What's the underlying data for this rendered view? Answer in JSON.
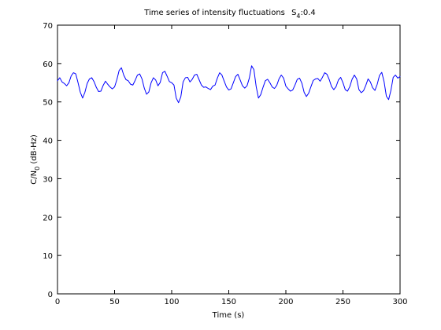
{
  "chart_data": {
    "type": "line",
    "title": "Time series of intensity fluctuations",
    "title_subscript_label": "S",
    "title_subscript": "4",
    "title_suffix": ":0.4",
    "xlabel": "Time (s)",
    "ylabel_prefix": "C/N",
    "ylabel_subscript": "0",
    "ylabel_suffix": " (dB-Hz)",
    "xlim": [
      0,
      300
    ],
    "ylim": [
      0,
      70
    ],
    "xticks": [
      0,
      50,
      100,
      150,
      200,
      250,
      300
    ],
    "yticks": [
      0,
      10,
      20,
      30,
      40,
      50,
      60,
      70
    ],
    "grid": false,
    "series": [
      {
        "color": "#0000ff",
        "x": [
          0,
          2,
          4,
          6,
          8,
          10,
          12,
          14,
          16,
          18,
          20,
          22,
          24,
          26,
          28,
          30,
          32,
          34,
          36,
          38,
          40,
          42,
          44,
          46,
          48,
          50,
          52,
          54,
          56,
          58,
          60,
          62,
          64,
          66,
          68,
          70,
          72,
          74,
          76,
          78,
          80,
          82,
          84,
          86,
          88,
          90,
          92,
          94,
          96,
          98,
          100,
          102,
          104,
          106,
          108,
          110,
          112,
          114,
          116,
          118,
          120,
          122,
          124,
          126,
          128,
          130,
          132,
          134,
          136,
          138,
          140,
          142,
          144,
          146,
          148,
          150,
          152,
          154,
          156,
          158,
          160,
          162,
          164,
          166,
          168,
          170,
          172,
          174,
          176,
          178,
          180,
          182,
          184,
          186,
          188,
          190,
          192,
          194,
          196,
          198,
          200,
          202,
          204,
          206,
          208,
          210,
          212,
          214,
          216,
          218,
          220,
          222,
          224,
          226,
          228,
          230,
          232,
          234,
          236,
          238,
          240,
          242,
          244,
          246,
          248,
          250,
          252,
          254,
          256,
          258,
          260,
          262,
          264,
          266,
          268,
          270,
          272,
          274,
          276,
          278,
          280,
          282,
          284,
          286,
          288,
          290,
          292,
          294,
          296,
          298,
          300
        ],
        "values": [
          55.5,
          56.3,
          55.2,
          54.8,
          54.2,
          55.0,
          56.8,
          57.6,
          57.3,
          55.0,
          52.5,
          51.0,
          52.5,
          54.8,
          56.0,
          56.3,
          55.3,
          53.8,
          52.7,
          52.8,
          54.3,
          55.4,
          54.6,
          53.9,
          53.4,
          53.9,
          55.8,
          58.2,
          58.9,
          57.0,
          55.8,
          55.5,
          54.6,
          54.4,
          55.6,
          57.0,
          57.3,
          56.0,
          53.6,
          52.0,
          52.6,
          55.0,
          56.3,
          55.7,
          54.2,
          55.1,
          57.6,
          58.0,
          56.7,
          55.3,
          55.0,
          54.4,
          51.0,
          49.8,
          51.3,
          55.2,
          56.3,
          56.4,
          55.2,
          55.9,
          57.0,
          57.2,
          55.8,
          54.4,
          53.8,
          53.9,
          53.5,
          53.2,
          54.1,
          54.4,
          56.2,
          57.6,
          57.0,
          55.4,
          53.9,
          53.1,
          53.4,
          55.0,
          56.6,
          57.2,
          55.7,
          54.2,
          53.6,
          54.2,
          56.2,
          59.4,
          58.4,
          54.0,
          51.0,
          51.9,
          53.8,
          55.5,
          55.9,
          55.0,
          53.9,
          53.5,
          54.3,
          56.0,
          57.0,
          56.2,
          54.1,
          53.4,
          52.8,
          53.1,
          54.4,
          55.9,
          56.2,
          54.9,
          52.5,
          51.4,
          52.3,
          54.0,
          55.6,
          56.0,
          56.1,
          55.4,
          56.4,
          57.6,
          57.2,
          55.8,
          54.0,
          53.2,
          54.0,
          55.7,
          56.4,
          55.0,
          53.2,
          52.8,
          54.0,
          55.9,
          57.0,
          56.0,
          53.2,
          52.4,
          52.9,
          54.3,
          56.0,
          55.2,
          53.7,
          53.0,
          54.6,
          56.9,
          57.7,
          55.3,
          51.5,
          50.6,
          53.0,
          56.4,
          57.0,
          56.2,
          56.6
        ]
      }
    ]
  }
}
